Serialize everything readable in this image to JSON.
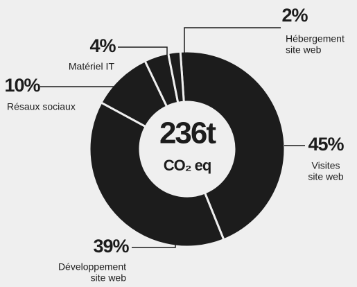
{
  "chart_data": {
    "type": "donut",
    "categories": [
      [
        "Visites",
        "site web"
      ],
      [
        "Développement",
        "site web"
      ],
      [
        "Résaux sociaux"
      ],
      [
        "Matériel IT"
      ],
      [
        "Hébergement",
        "site web"
      ]
    ],
    "values": [
      45,
      39,
      10,
      4,
      2
    ],
    "value_labels": [
      "45%",
      "39%",
      "10%",
      "4%",
      "2%"
    ],
    "color": "#1c1c1c",
    "center_label": "236t",
    "center_sublabel": "CO₂ eq"
  }
}
